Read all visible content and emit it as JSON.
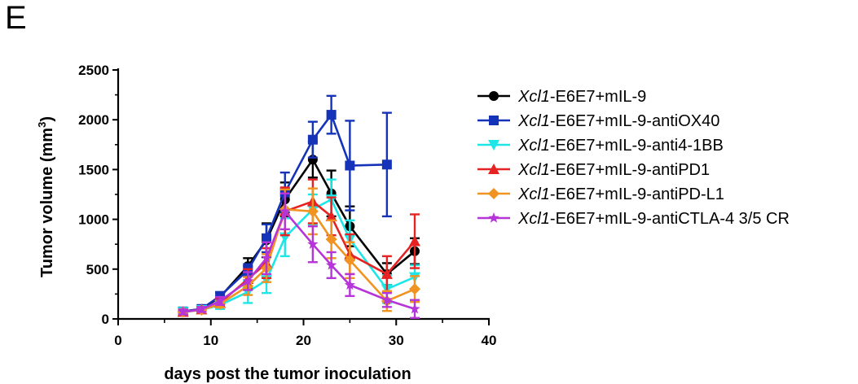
{
  "panel_label": "E",
  "chart_data": {
    "type": "line",
    "xlabel": "days post the tumor inoculation",
    "ylabel": "Tumor volume (mm3)",
    "ylabel_parts": {
      "main": "Tumor volume (mm",
      "sup": "3",
      "close": ")"
    },
    "xlim": [
      0,
      40
    ],
    "ylim": [
      0,
      2500
    ],
    "xticks": [
      0,
      10,
      20,
      30,
      40
    ],
    "yticks": [
      0,
      500,
      1000,
      1500,
      2000,
      2500
    ],
    "legend_position": "right",
    "series": [
      {
        "name": "Xcl1-E6E7+mIL-9",
        "name_italic": "Xcl1",
        "name_rest": "-E6E7+mIL-9",
        "color": "#000000",
        "marker": "circle",
        "x": [
          7,
          9,
          11,
          14,
          16,
          18,
          21,
          23,
          25,
          29,
          32
        ],
        "y": [
          75,
          100,
          220,
          530,
          790,
          1200,
          1600,
          1260,
          930,
          450,
          680
        ],
        "err": [
          30,
          30,
          40,
          80,
          170,
          170,
          180,
          230,
          200,
          110,
          130
        ]
      },
      {
        "name": "Xcl1-E6E7+mIL-9-antiOX40",
        "name_italic": "Xcl1",
        "name_rest": "-E6E7+mIL-9-antiOX40",
        "color": "#1433b8",
        "marker": "square",
        "x": [
          7,
          9,
          11,
          14,
          16,
          18,
          21,
          23,
          25,
          29
        ],
        "y": [
          75,
          100,
          230,
          490,
          810,
          1270,
          1800,
          2050,
          1540,
          1550
        ],
        "err": [
          30,
          30,
          40,
          60,
          140,
          200,
          180,
          190,
          450,
          520
        ]
      },
      {
        "name": "Xcl1-E6E7+mIL-9-anti4-1BB",
        "name_italic": "Xcl1",
        "name_rest": "-E6E7+mIL-9-anti4-1BB",
        "color": "#1ee6e6",
        "marker": "triangle-down",
        "x": [
          7,
          9,
          11,
          14,
          16,
          18,
          21,
          23,
          25,
          29,
          32
        ],
        "y": [
          70,
          90,
          140,
          270,
          390,
          820,
          1100,
          1200,
          800,
          300,
          420
        ],
        "err": [
          25,
          25,
          40,
          110,
          130,
          190,
          150,
          200,
          190,
          140,
          120
        ]
      },
      {
        "name": "Xcl1-E6E7+mIL-9-antiPD1",
        "name_italic": "Xcl1",
        "name_rest": "-E6E7+mIL-9-antiPD1",
        "color": "#e62222",
        "marker": "triangle-up",
        "x": [
          7,
          9,
          11,
          14,
          16,
          18,
          21,
          23,
          25,
          29,
          32
        ],
        "y": [
          70,
          95,
          160,
          400,
          560,
          1080,
          1180,
          1030,
          650,
          450,
          780
        ],
        "err": [
          25,
          25,
          40,
          100,
          150,
          240,
          220,
          190,
          200,
          180,
          270
        ]
      },
      {
        "name": "Xcl1-E6E7+mIL-9-antiPD-L1",
        "name_italic": "Xcl1",
        "name_rest": "-E6E7+mIL-9-antiPD-L1",
        "color": "#f09320",
        "marker": "diamond",
        "x": [
          7,
          9,
          11,
          14,
          16,
          18,
          21,
          23,
          25,
          29,
          32
        ],
        "y": [
          70,
          90,
          150,
          330,
          510,
          1100,
          1080,
          800,
          590,
          180,
          300
        ],
        "err": [
          25,
          25,
          35,
          90,
          140,
          200,
          230,
          190,
          180,
          100,
          130
        ]
      },
      {
        "name": "Xcl1-E6E7+mIL-9-antiCTLA-4 3/5 CR",
        "name_italic": "Xcl1",
        "name_rest": "-E6E7+mIL-9-antiCTLA-4 3/5 CR",
        "color": "#b535d8",
        "marker": "star",
        "x": [
          7,
          9,
          11,
          14,
          16,
          18,
          21,
          23,
          25,
          29,
          32
        ],
        "y": [
          70,
          95,
          180,
          380,
          610,
          1080,
          750,
          540,
          340,
          190,
          100
        ],
        "err": [
          25,
          25,
          40,
          90,
          160,
          180,
          180,
          130,
          110,
          70,
          90
        ]
      }
    ]
  }
}
